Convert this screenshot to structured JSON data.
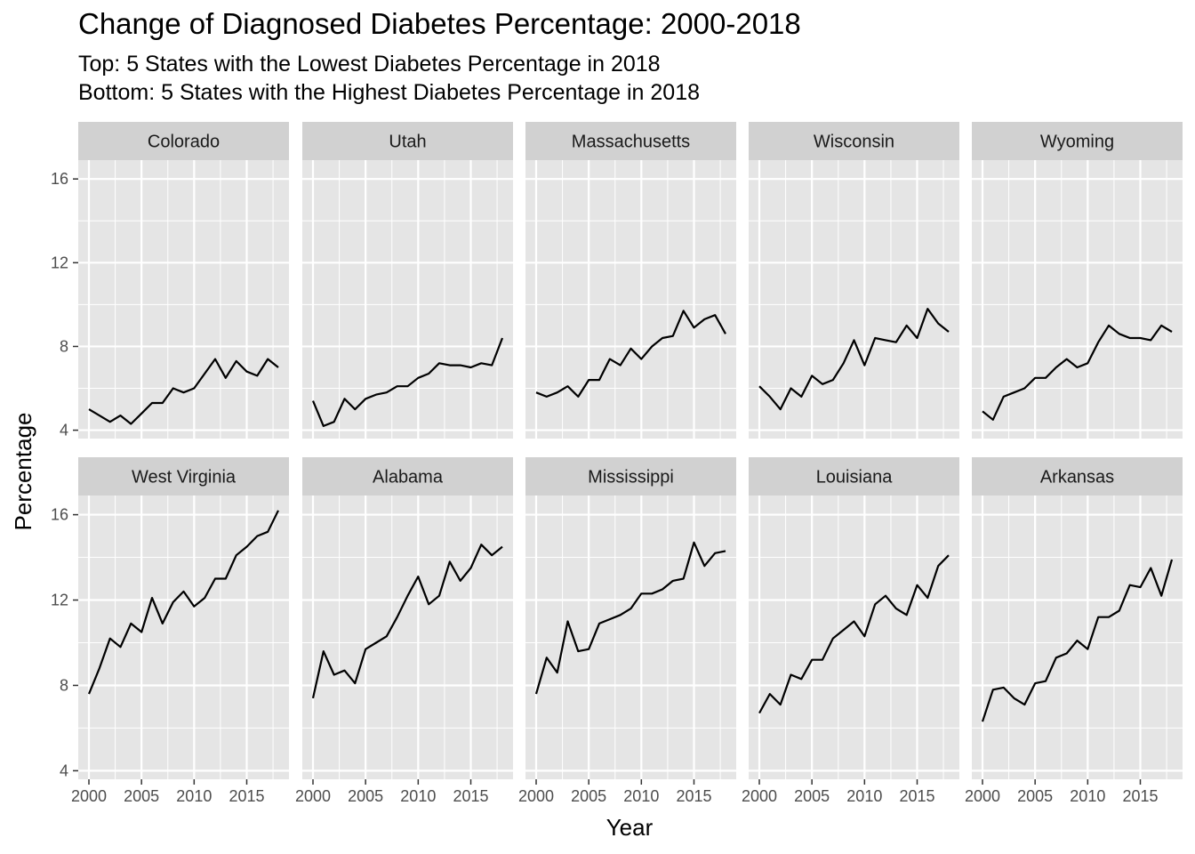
{
  "chart": {
    "title": "Change of Diagnosed Diabetes Percentage: 2000-2018",
    "subtitle_line1": "Top: 5 States with the Lowest Diabetes Percentage in 2018",
    "subtitle_line2": "Bottom: 5 States with the Highest Diabetes Percentage in 2018"
  },
  "colors": {
    "panel_bg": "#e5e5e5",
    "strip_bg": "#d1d1d1",
    "grid": "#ffffff",
    "line": "#000000"
  },
  "chart_data": {
    "type": "line",
    "title": "Change of Diagnosed Diabetes Percentage: 2000-2018",
    "xlabel": "Year",
    "ylabel": "Percentage",
    "x": [
      2000,
      2001,
      2002,
      2003,
      2004,
      2005,
      2006,
      2007,
      2008,
      2009,
      2010,
      2011,
      2012,
      2013,
      2014,
      2015,
      2016,
      2017,
      2018
    ],
    "xlim": [
      2000,
      2018
    ],
    "ylim": [
      4,
      16
    ],
    "x_ticks": [
      2000,
      2005,
      2010,
      2015
    ],
    "y_ticks": [
      4,
      8,
      12,
      16
    ],
    "facet_rows": 2,
    "facet_cols": 5,
    "grid": true,
    "series": [
      {
        "name": "Colorado",
        "values": [
          5.0,
          4.7,
          4.4,
          4.7,
          4.3,
          4.8,
          5.3,
          5.3,
          6.0,
          5.8,
          6.0,
          6.7,
          7.4,
          6.5,
          7.3,
          6.8,
          6.6,
          7.4,
          7.0
        ]
      },
      {
        "name": "Utah",
        "values": [
          5.4,
          4.2,
          4.4,
          5.5,
          5.0,
          5.5,
          5.7,
          5.8,
          6.1,
          6.1,
          6.5,
          6.7,
          7.2,
          7.1,
          7.1,
          7.0,
          7.2,
          7.1,
          8.4
        ]
      },
      {
        "name": "Massachusetts",
        "values": [
          5.8,
          5.6,
          5.8,
          6.1,
          5.6,
          6.4,
          6.4,
          7.4,
          7.1,
          7.9,
          7.4,
          8.0,
          8.4,
          8.5,
          9.7,
          8.9,
          9.3,
          9.5,
          8.6
        ]
      },
      {
        "name": "Wisconsin",
        "values": [
          6.1,
          5.6,
          5.0,
          6.0,
          5.6,
          6.6,
          6.2,
          6.4,
          7.2,
          8.3,
          7.1,
          8.4,
          8.3,
          8.2,
          9.0,
          8.4,
          9.8,
          9.1,
          8.7
        ]
      },
      {
        "name": "Wyoming",
        "values": [
          4.9,
          4.5,
          5.6,
          5.8,
          6.0,
          6.5,
          6.5,
          7.0,
          7.4,
          7.0,
          7.2,
          8.2,
          9.0,
          8.6,
          8.4,
          8.4,
          8.3,
          9.0,
          8.7
        ]
      },
      {
        "name": "West Virginia",
        "values": [
          7.6,
          8.8,
          10.2,
          9.8,
          10.9,
          10.5,
          12.1,
          10.9,
          11.9,
          12.4,
          11.7,
          12.1,
          13.0,
          13.0,
          14.1,
          14.5,
          15.0,
          15.2,
          16.2
        ]
      },
      {
        "name": "Alabama",
        "values": [
          7.4,
          9.6,
          8.5,
          8.7,
          8.1,
          9.7,
          10.0,
          10.3,
          11.2,
          12.2,
          13.1,
          11.8,
          12.2,
          13.8,
          12.9,
          13.5,
          14.6,
          14.1,
          14.5
        ]
      },
      {
        "name": "Mississippi",
        "values": [
          7.6,
          9.3,
          8.6,
          11.0,
          9.6,
          9.7,
          10.9,
          11.1,
          11.3,
          11.6,
          12.3,
          12.3,
          12.5,
          12.9,
          13.0,
          14.7,
          13.6,
          14.2,
          14.3
        ]
      },
      {
        "name": "Louisiana",
        "values": [
          6.7,
          7.6,
          7.1,
          8.5,
          8.3,
          9.2,
          9.2,
          10.2,
          10.6,
          11.0,
          10.3,
          11.8,
          12.2,
          11.6,
          11.3,
          12.7,
          12.1,
          13.6,
          14.1
        ]
      },
      {
        "name": "Arkansas",
        "values": [
          6.3,
          7.8,
          7.9,
          7.4,
          7.1,
          8.1,
          8.2,
          9.3,
          9.5,
          10.1,
          9.7,
          11.2,
          11.2,
          11.5,
          12.7,
          12.6,
          13.5,
          12.2,
          13.9
        ]
      }
    ]
  }
}
